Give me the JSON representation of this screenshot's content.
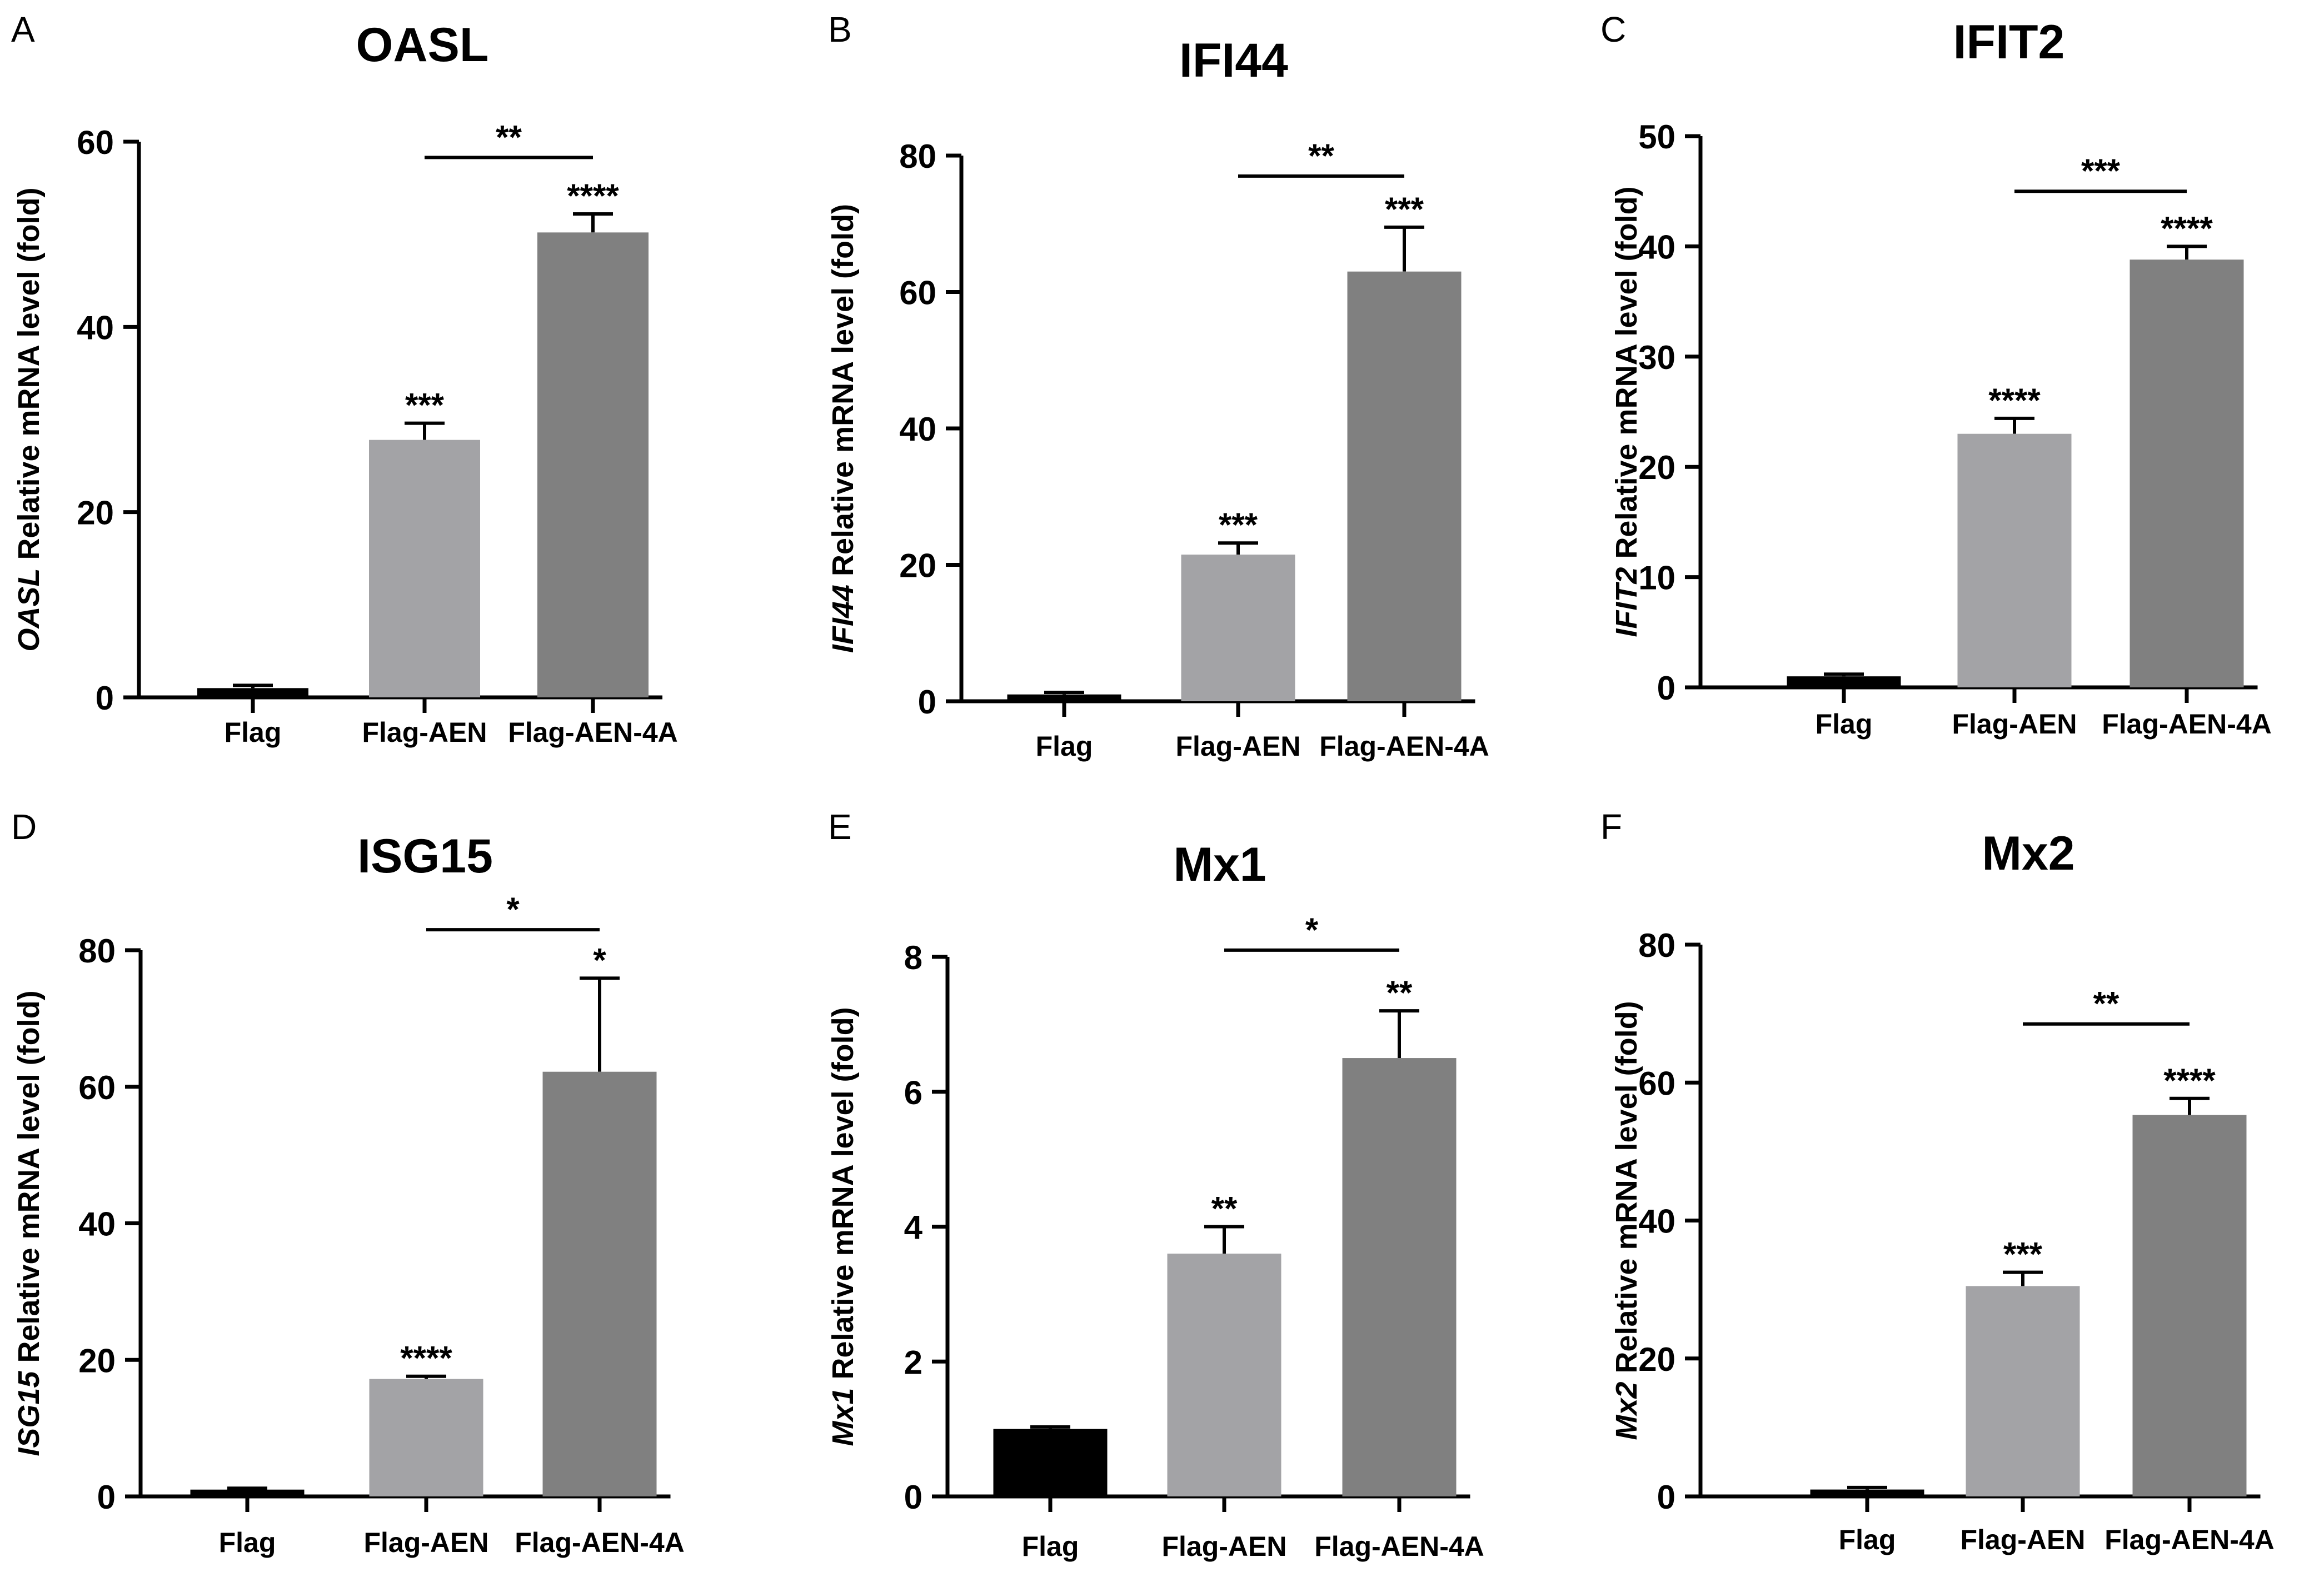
{
  "figure": {
    "background": "#ffffff"
  },
  "bar_colors": {
    "Flag": "#000000",
    "Flag-AEN": "#a3a3a6",
    "Flag-AEN-4A": "#808080"
  },
  "chart_data": [
    {
      "panel_letter": "A",
      "title": "OASL",
      "type": "bar",
      "ylabel_gene": "OASL",
      "ylabel_rest": " Relative  mRNA level (fold)",
      "categories": [
        "Flag",
        "Flag-AEN",
        "Flag-AEN-4A"
      ],
      "values": [
        1.0,
        27.8,
        50.2
      ],
      "errors": [
        0.3,
        1.8,
        2.0
      ],
      "ylim": [
        0,
        60
      ],
      "yticks": [
        0,
        20,
        40,
        60
      ],
      "bar_labels": [
        "",
        "***",
        "****"
      ],
      "bracket": {
        "from": 1,
        "to": 2,
        "label": "**",
        "y": 58.3
      }
    },
    {
      "panel_letter": "B",
      "title": "IFI44",
      "type": "bar",
      "ylabel_gene": "IFI44",
      "ylabel_rest": " Relative  mRNA level (fold)",
      "categories": [
        "Flag",
        "Flag-AEN",
        "Flag-AEN-4A"
      ],
      "values": [
        1.0,
        21.5,
        63.0
      ],
      "errors": [
        0.3,
        1.7,
        6.5
      ],
      "ylim": [
        0,
        80
      ],
      "yticks": [
        0,
        20,
        40,
        60,
        80
      ],
      "bar_labels": [
        "",
        "***",
        "***"
      ],
      "bracket": {
        "from": 1,
        "to": 2,
        "label": "**",
        "y": 77.0
      }
    },
    {
      "panel_letter": "C",
      "title": "IFIT2",
      "type": "bar",
      "ylabel_gene": "IFIT2",
      "ylabel_rest": " Relative  mRNA level (fold)",
      "categories": [
        "Flag",
        "Flag-AEN",
        "Flag-AEN-4A"
      ],
      "values": [
        1.0,
        23.0,
        38.8
      ],
      "errors": [
        0.2,
        1.4,
        1.2
      ],
      "ylim": [
        0,
        50
      ],
      "yticks": [
        0,
        10,
        20,
        30,
        40,
        50
      ],
      "bar_labels": [
        "",
        "****",
        "****"
      ],
      "bracket": {
        "from": 1,
        "to": 2,
        "label": "***",
        "y": 45.0
      }
    },
    {
      "panel_letter": "D",
      "title": "ISG15",
      "type": "bar",
      "ylabel_gene": "ISG15",
      "ylabel_rest": " Relative  mRNA level (fold)",
      "categories": [
        "Flag",
        "Flag-AEN",
        "Flag-AEN-4A"
      ],
      "values": [
        1.0,
        17.2,
        62.2
      ],
      "errors": [
        0.2,
        0.4,
        13.7
      ],
      "ylim": [
        0,
        80
      ],
      "yticks": [
        0,
        20,
        40,
        60,
        80
      ],
      "bar_labels": [
        "",
        "****",
        "*"
      ],
      "bracket": {
        "from": 1,
        "to": 2,
        "label": "*",
        "y": 83.0
      }
    },
    {
      "panel_letter": "E",
      "title": "Mx1",
      "type": "bar",
      "ylabel_gene": "Mx1",
      "ylabel_rest": " Relative  mRNA level (fold)",
      "categories": [
        "Flag",
        "Flag-AEN",
        "Flag-AEN-4A"
      ],
      "values": [
        1.0,
        3.6,
        6.5
      ],
      "errors": [
        0.03,
        0.4,
        0.7
      ],
      "ylim": [
        0,
        8
      ],
      "yticks": [
        0,
        2,
        4,
        6,
        8
      ],
      "bar_labels": [
        "",
        "**",
        "**"
      ],
      "bracket": {
        "from": 1,
        "to": 2,
        "label": "*",
        "y": 8.1
      }
    },
    {
      "panel_letter": "F",
      "title": "Mx2",
      "type": "bar",
      "ylabel_gene": "Mx2",
      "ylabel_rest": " Relative  mRNA level (fold)",
      "categories": [
        "Flag",
        "Flag-AEN",
        "Flag-AEN-4A"
      ],
      "values": [
        1.0,
        30.5,
        55.3
      ],
      "errors": [
        0.3,
        2.0,
        2.4
      ],
      "ylim": [
        0,
        80
      ],
      "yticks": [
        0,
        20,
        40,
        60,
        80
      ],
      "bar_labels": [
        "",
        "***",
        "****"
      ],
      "bracket": {
        "from": 1,
        "to": 2,
        "label": "**",
        "y": 68.5
      }
    }
  ]
}
